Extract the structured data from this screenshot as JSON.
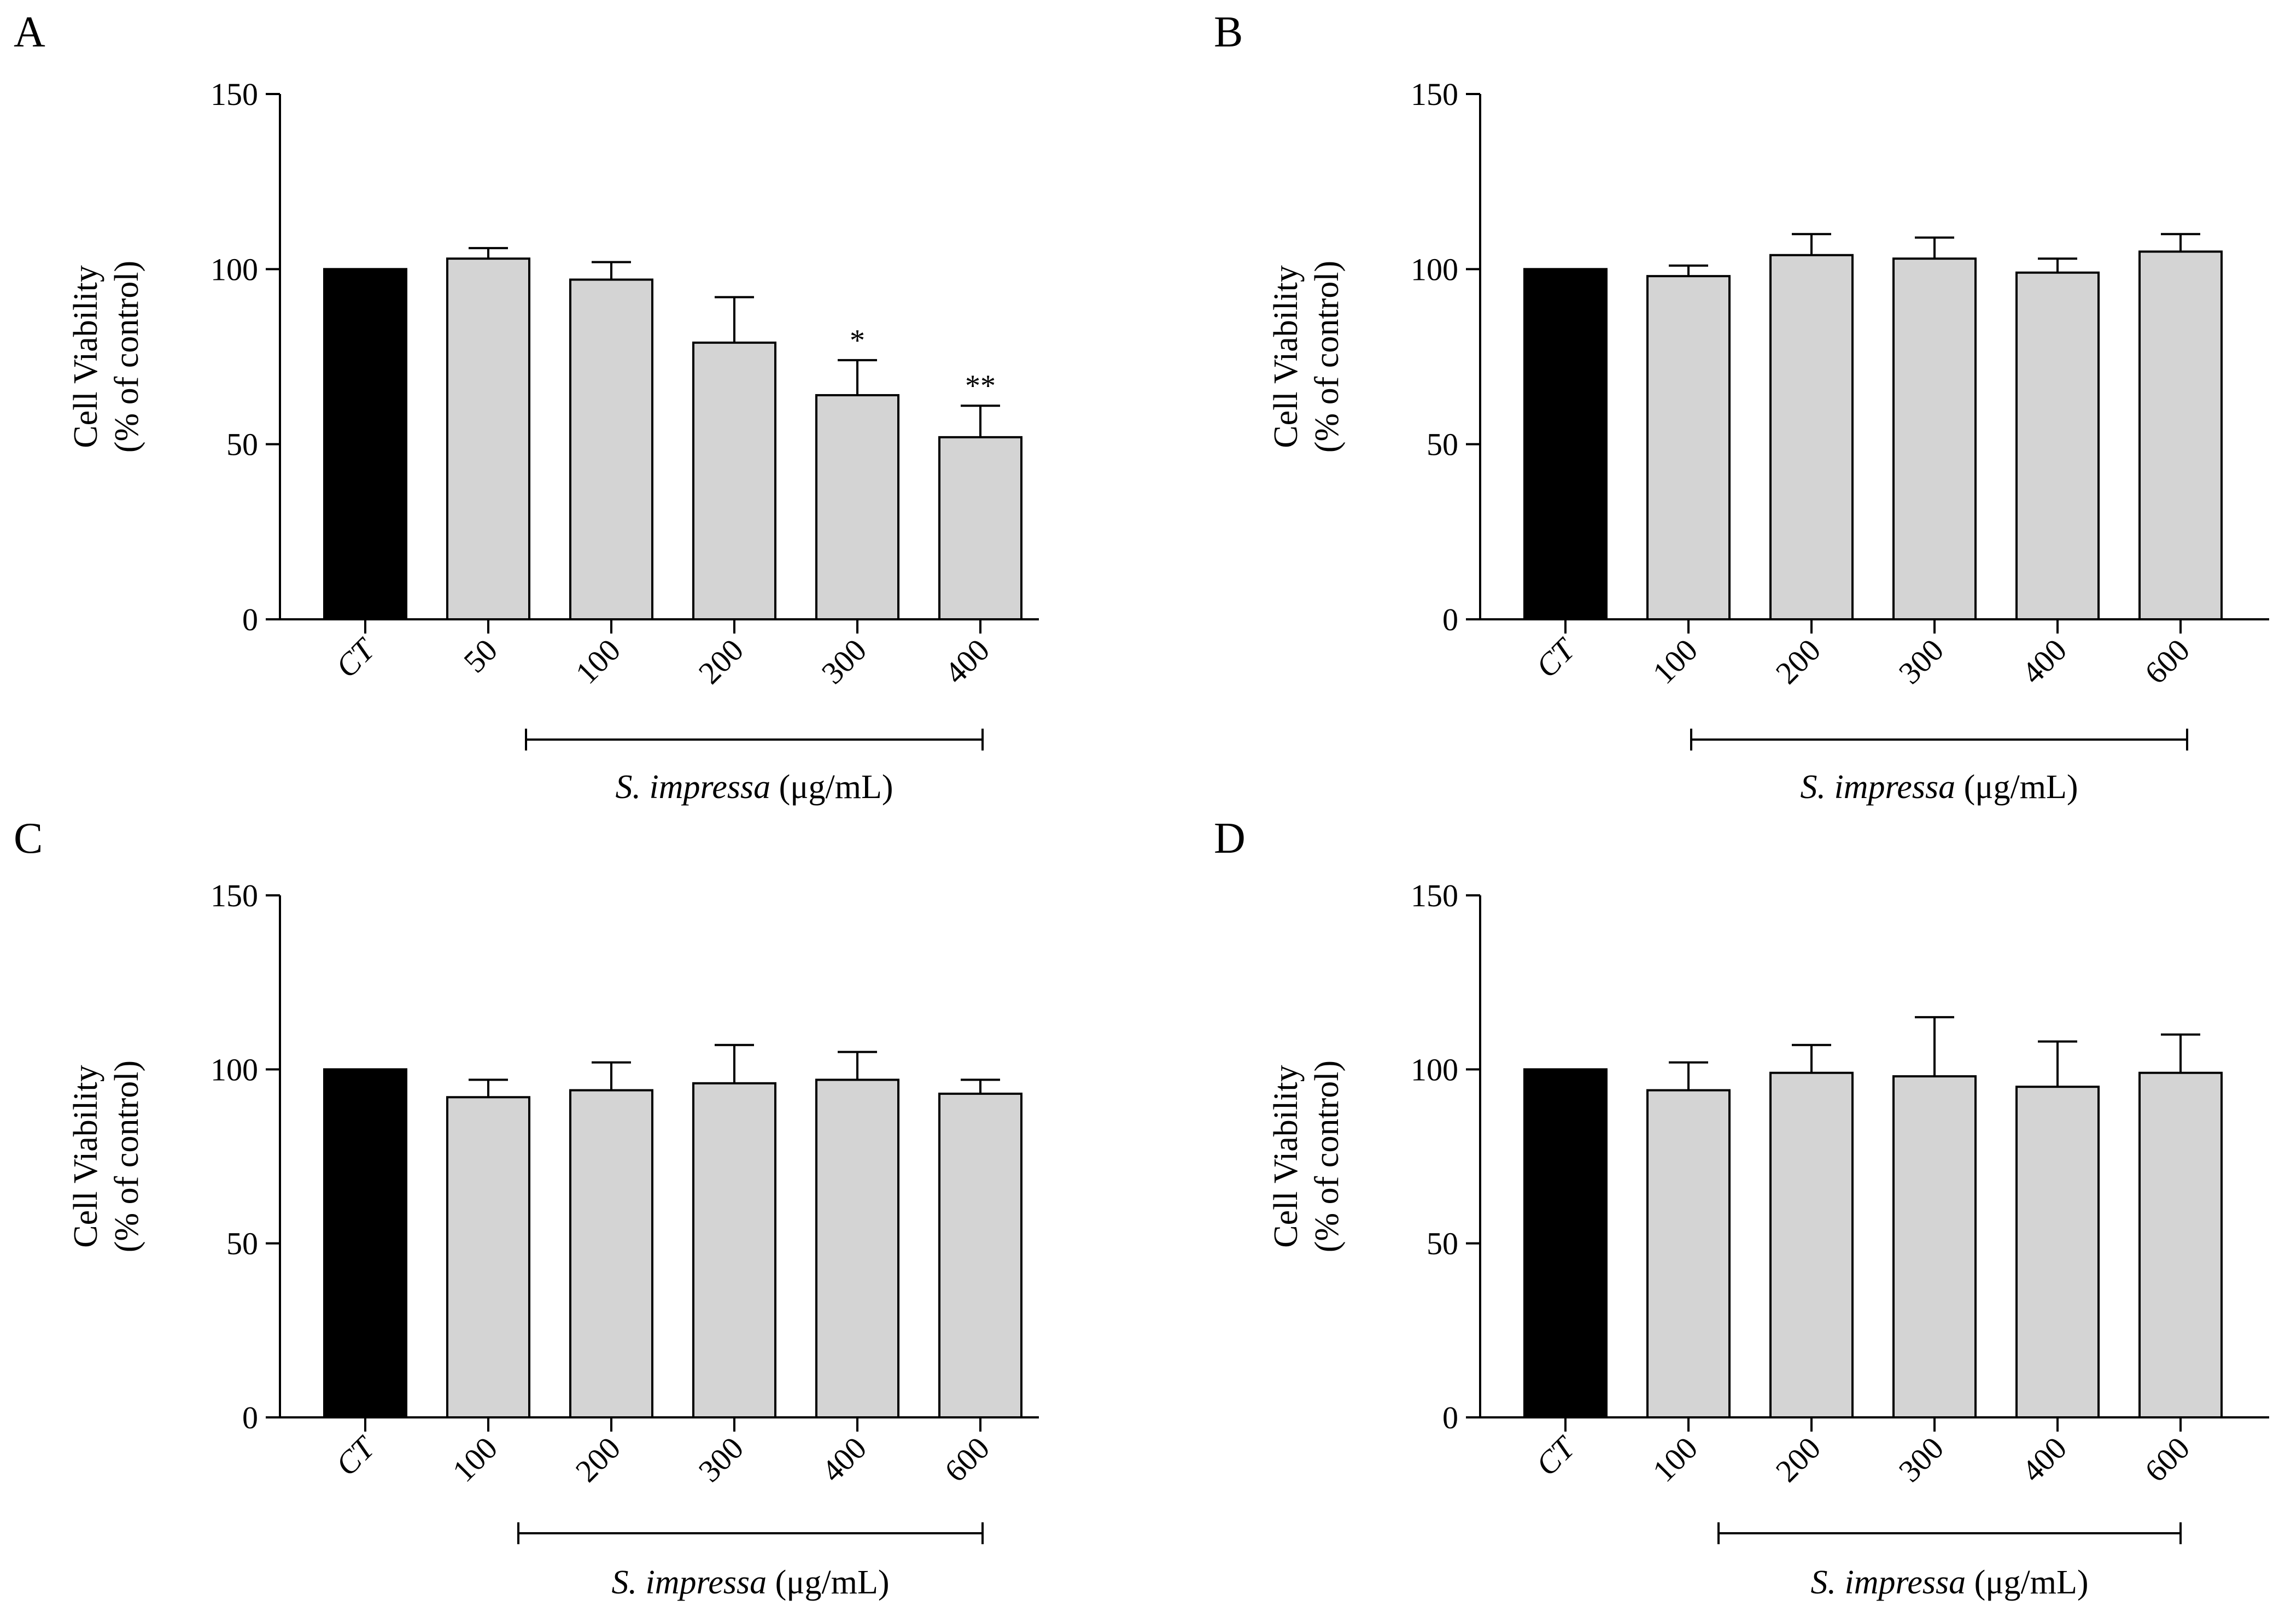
{
  "chart_data": [
    {
      "id": "A",
      "type": "bar",
      "panel_label": "A",
      "categories": [
        "CT",
        "50",
        "100",
        "200",
        "300",
        "400"
      ],
      "values": [
        100,
        103,
        97,
        79,
        64,
        52
      ],
      "errors": [
        0,
        3,
        5,
        13,
        10,
        9
      ],
      "annotations": [
        "",
        "",
        "",
        "",
        "*",
        "**"
      ],
      "ylabel_line1": "Cell Viability",
      "ylabel_line2": "(% of control)",
      "xlabel_italic": "S. impressa",
      "xlabel_unit": " (μg/mL)",
      "yticks": [
        "0",
        "50",
        "100",
        "150"
      ],
      "ylim": [
        0,
        150
      ],
      "control_color": "#000000",
      "treatment_color": "#d4d4d4"
    },
    {
      "id": "B",
      "type": "bar",
      "panel_label": "B",
      "categories": [
        "CT",
        "100",
        "200",
        "300",
        "400",
        "600"
      ],
      "values": [
        100,
        98,
        104,
        103,
        99,
        105
      ],
      "errors": [
        0,
        3,
        6,
        6,
        4,
        5
      ],
      "annotations": [
        "",
        "",
        "",
        "",
        "",
        ""
      ],
      "ylabel_line1": "Cell Viability",
      "ylabel_line2": "(% of control)",
      "xlabel_italic": "S. impressa",
      "xlabel_unit": " (μg/mL)",
      "yticks": [
        "0",
        "50",
        "100",
        "150"
      ],
      "ylim": [
        0,
        150
      ],
      "control_color": "#000000",
      "treatment_color": "#d4d4d4"
    },
    {
      "id": "C",
      "type": "bar",
      "panel_label": "C",
      "categories": [
        "CT",
        "100",
        "200",
        "300",
        "400",
        "600"
      ],
      "values": [
        100,
        92,
        94,
        96,
        97,
        93
      ],
      "errors": [
        0,
        5,
        8,
        11,
        8,
        4
      ],
      "annotations": [
        "",
        "",
        "",
        "",
        "",
        ""
      ],
      "ylabel_line1": "Cell Viability",
      "ylabel_line2": "(% of control)",
      "xlabel_italic": "S. impressa",
      "xlabel_unit": " (μg/mL)",
      "yticks": [
        "0",
        "50",
        "100",
        "150"
      ],
      "ylim": [
        0,
        150
      ],
      "control_color": "#000000",
      "treatment_color": "#d4d4d4"
    },
    {
      "id": "D",
      "type": "bar",
      "panel_label": "D",
      "categories": [
        "CT",
        "100",
        "200",
        "300",
        "400",
        "600"
      ],
      "values": [
        100,
        94,
        99,
        98,
        95,
        99
      ],
      "errors": [
        0,
        8,
        8,
        17,
        13,
        11
      ],
      "annotations": [
        "",
        "",
        "",
        "",
        "",
        ""
      ],
      "ylabel_line1": "Cell Viability",
      "ylabel_line2": "(% of control)",
      "xlabel_italic": "S. impressa",
      "xlabel_unit": " (μg/mL)",
      "yticks": [
        "0",
        "50",
        "100",
        "150"
      ],
      "ylim": [
        0,
        150
      ],
      "control_color": "#000000",
      "treatment_color": "#d4d4d4"
    }
  ]
}
